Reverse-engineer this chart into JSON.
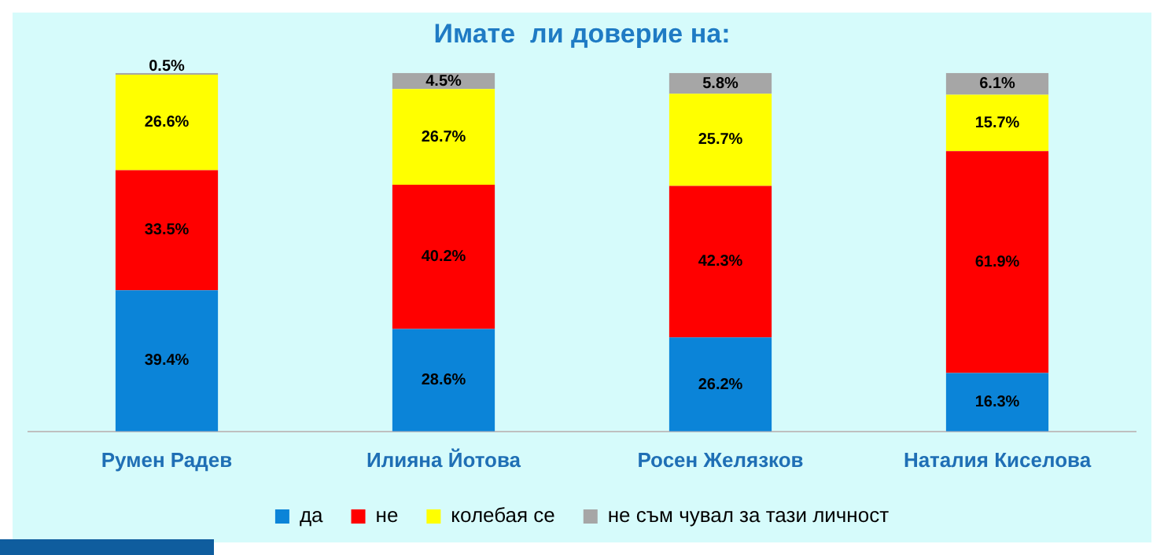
{
  "chart_data": {
    "type": "bar",
    "title": "Имате  ли доверие на:",
    "stacked": true,
    "categories": [
      "Румен Радев",
      "Илияна Йотова",
      "Росен Желязков",
      "Наталия Киселова"
    ],
    "ylim": [
      0,
      100
    ],
    "tick_labels": "x",
    "legend": "bottom",
    "series": [
      {
        "name": "да",
        "color": "#0b84d8",
        "values": [
          39.4,
          28.6,
          26.2,
          16.3
        ],
        "value_labels": [
          "39.4%",
          "28.6%",
          "26.2%",
          "16.3%"
        ]
      },
      {
        "name": "не",
        "color": "#ff0000",
        "values": [
          33.5,
          40.2,
          42.3,
          61.9
        ],
        "value_labels": [
          "33.5%",
          "40.2%",
          "42.3%",
          "61.9%"
        ]
      },
      {
        "name": "колебая се",
        "color": "#ffff00",
        "values": [
          26.6,
          26.7,
          25.7,
          15.7
        ],
        "value_labels": [
          "26.6%",
          "26.7%",
          "25.7%",
          "15.7%"
        ]
      },
      {
        "name": "не съм чувал за тази личност",
        "color": "#a6a6a6",
        "values": [
          0.5,
          4.5,
          5.8,
          6.1
        ],
        "value_labels": [
          "0.5%",
          "4.5%",
          "5.8%",
          "6.1%"
        ]
      }
    ]
  }
}
